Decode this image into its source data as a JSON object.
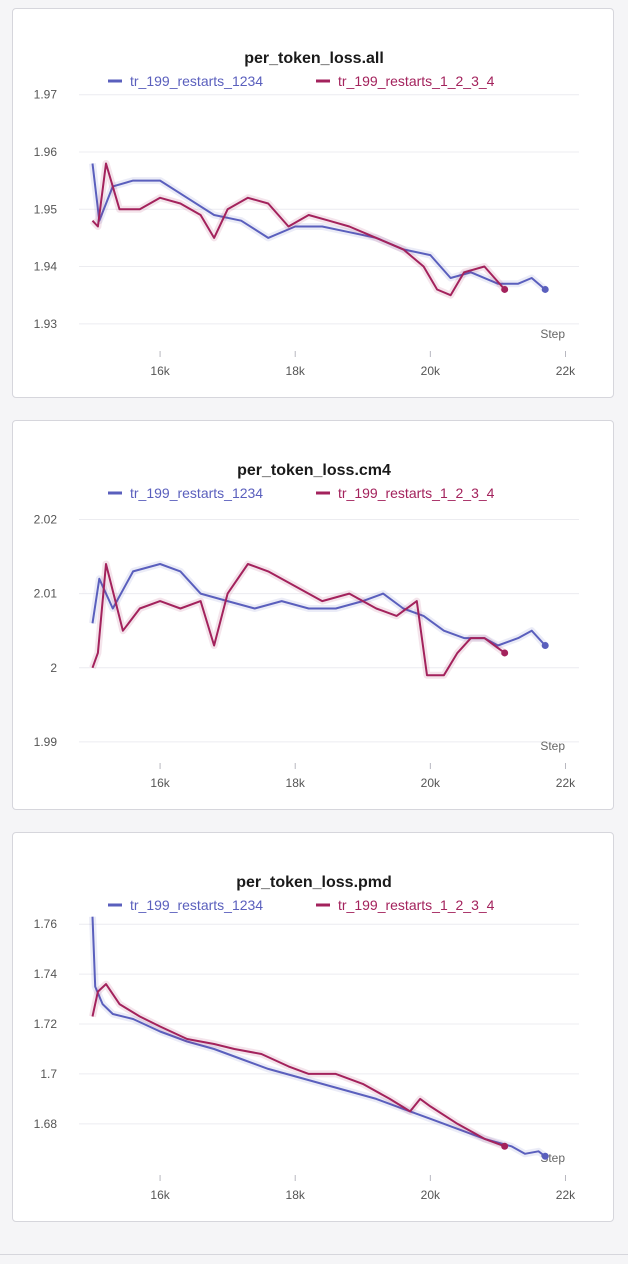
{
  "colors": {
    "series_blue": "#5a5fbd",
    "series_red": "#a3225c",
    "grid": "#ececf0",
    "panel_bg": "#ffffff"
  },
  "chart_data": [
    {
      "type": "line",
      "title": "per_token_loss.all",
      "xlabel": "Step",
      "ylabel": "",
      "xlim": [
        14800,
        22200
      ],
      "ylim": [
        1.927,
        1.971
      ],
      "x_ticks": [
        16000,
        18000,
        20000,
        22000
      ],
      "x_tick_labels": [
        "16k",
        "18k",
        "20k",
        "22k"
      ],
      "y_ticks": [
        1.93,
        1.94,
        1.95,
        1.96,
        1.97
      ],
      "y_tick_labels": [
        "1.93",
        "1.94",
        "1.95",
        "1.96",
        "1.97"
      ],
      "grid": true,
      "legend": "top",
      "series": [
        {
          "name": "tr_199_restarts_1234",
          "color": "#5a5fbd",
          "x": [
            15000,
            15100,
            15300,
            15600,
            16000,
            16400,
            16800,
            17200,
            17600,
            18000,
            18400,
            18800,
            19200,
            19600,
            20000,
            20300,
            20600,
            21000,
            21300,
            21500,
            21700
          ],
          "y": [
            1.958,
            1.948,
            1.954,
            1.955,
            1.955,
            1.952,
            1.949,
            1.948,
            1.945,
            1.947,
            1.947,
            1.946,
            1.945,
            1.943,
            1.942,
            1.938,
            1.939,
            1.937,
            1.937,
            1.938,
            1.936
          ]
        },
        {
          "name": "tr_199_restarts_1_2_3_4",
          "color": "#a3225c",
          "x": [
            15000,
            15080,
            15200,
            15400,
            15700,
            16000,
            16300,
            16600,
            16800,
            17000,
            17300,
            17600,
            17900,
            18200,
            18500,
            18800,
            19200,
            19600,
            19900,
            20100,
            20300,
            20500,
            20800,
            21100
          ],
          "y": [
            1.948,
            1.947,
            1.958,
            1.95,
            1.95,
            1.952,
            1.951,
            1.949,
            1.945,
            1.95,
            1.952,
            1.951,
            1.947,
            1.949,
            1.948,
            1.947,
            1.945,
            1.943,
            1.94,
            1.936,
            1.935,
            1.939,
            1.94,
            1.936
          ]
        }
      ]
    },
    {
      "type": "line",
      "title": "per_token_loss.cm4",
      "xlabel": "Step",
      "ylabel": "",
      "xlim": [
        14800,
        22200
      ],
      "ylim": [
        1.9885,
        2.0225
      ],
      "x_ticks": [
        16000,
        18000,
        20000,
        22000
      ],
      "x_tick_labels": [
        "16k",
        "18k",
        "20k",
        "22k"
      ],
      "y_ticks": [
        1.99,
        2.0,
        2.01,
        2.02
      ],
      "y_tick_labels": [
        "1.99",
        "2",
        "2.01",
        "2.02"
      ],
      "grid": true,
      "legend": "top",
      "series": [
        {
          "name": "tr_199_restarts_1234",
          "color": "#5a5fbd",
          "x": [
            15000,
            15100,
            15300,
            15600,
            16000,
            16300,
            16600,
            17000,
            17400,
            17800,
            18200,
            18600,
            19000,
            19300,
            19600,
            19900,
            20200,
            20500,
            20800,
            21000,
            21300,
            21500,
            21700
          ],
          "y": [
            2.006,
            2.012,
            2.008,
            2.013,
            2.014,
            2.013,
            2.01,
            2.009,
            2.008,
            2.009,
            2.008,
            2.008,
            2.009,
            2.01,
            2.008,
            2.007,
            2.005,
            2.004,
            2.004,
            2.003,
            2.004,
            2.005,
            2.003
          ]
        },
        {
          "name": "tr_199_restarts_1_2_3_4",
          "color": "#a3225c",
          "x": [
            15000,
            15080,
            15200,
            15450,
            15700,
            16000,
            16300,
            16600,
            16800,
            17000,
            17300,
            17600,
            18000,
            18400,
            18800,
            19200,
            19500,
            19800,
            19950,
            20200,
            20400,
            20600,
            20800,
            21100
          ],
          "y": [
            2.0,
            2.002,
            2.014,
            2.005,
            2.008,
            2.009,
            2.008,
            2.009,
            2.003,
            2.01,
            2.014,
            2.013,
            2.011,
            2.009,
            2.01,
            2.008,
            2.007,
            2.009,
            1.999,
            1.999,
            2.002,
            2.004,
            2.004,
            2.002
          ]
        }
      ]
    },
    {
      "type": "line",
      "title": "per_token_loss.pmd",
      "xlabel": "Step",
      "ylabel": "",
      "xlim": [
        14800,
        22200
      ],
      "ylim": [
        1.6635,
        1.7645
      ],
      "x_ticks": [
        16000,
        18000,
        20000,
        22000
      ],
      "x_tick_labels": [
        "16k",
        "18k",
        "20k",
        "22k"
      ],
      "y_ticks": [
        1.68,
        1.7,
        1.72,
        1.74,
        1.76
      ],
      "y_tick_labels": [
        "1.68",
        "1.7",
        "1.72",
        "1.74",
        "1.76"
      ],
      "grid": true,
      "legend": "top",
      "series": [
        {
          "name": "tr_199_restarts_1234",
          "color": "#5a5fbd",
          "x": [
            15000,
            15040,
            15150,
            15300,
            15600,
            16000,
            16400,
            16800,
            17200,
            17600,
            18000,
            18400,
            18800,
            19200,
            19600,
            20000,
            20400,
            20800,
            21200,
            21400,
            21600,
            21700
          ],
          "y": [
            1.763,
            1.735,
            1.728,
            1.724,
            1.722,
            1.717,
            1.713,
            1.71,
            1.706,
            1.702,
            1.699,
            1.696,
            1.693,
            1.69,
            1.686,
            1.682,
            1.678,
            1.674,
            1.671,
            1.668,
            1.669,
            1.667
          ]
        },
        {
          "name": "tr_199_restarts_1_2_3_4",
          "color": "#a3225c",
          "x": [
            15000,
            15080,
            15200,
            15400,
            15700,
            16000,
            16400,
            16800,
            17100,
            17500,
            17900,
            18200,
            18600,
            19000,
            19400,
            19700,
            19850,
            20000,
            20400,
            20800,
            21100
          ],
          "y": [
            1.723,
            1.733,
            1.736,
            1.728,
            1.723,
            1.719,
            1.714,
            1.712,
            1.71,
            1.708,
            1.703,
            1.7,
            1.7,
            1.696,
            1.69,
            1.685,
            1.69,
            1.687,
            1.68,
            1.674,
            1.671
          ]
        }
      ]
    }
  ]
}
